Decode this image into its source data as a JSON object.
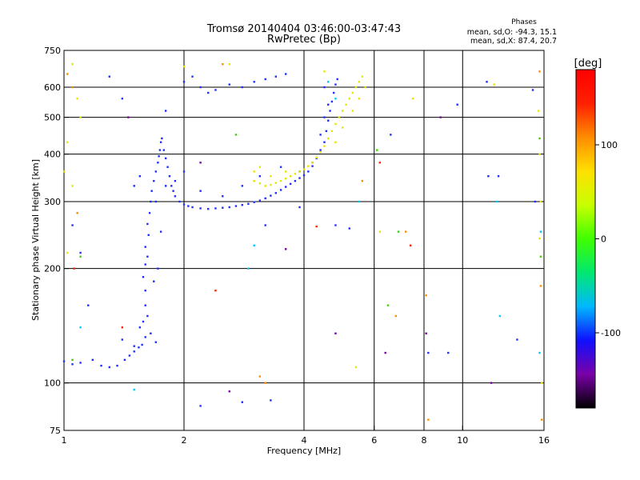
{
  "chart_data": {
    "type": "scatter",
    "title": "Tromsø 20140404 03:46:00-03:47:43",
    "subtitle": "RwPretec (Bp)",
    "xlabel": "Frequency [MHz]",
    "ylabel": "Stationary phase Virtual Height [km]",
    "xscale": "log",
    "yscale": "log",
    "xlim": [
      1,
      16
    ],
    "ylim": [
      75,
      750
    ],
    "xticks": [
      1,
      2,
      4,
      6,
      8,
      10,
      16
    ],
    "yticks": [
      75,
      100,
      200,
      300,
      400,
      500,
      600,
      750
    ],
    "grid": true,
    "info": {
      "heading": "Phases",
      "line1": "mean, sd,O: -94.3, 15.1",
      "line2": "mean, sd,X:  87.4, 20.7"
    },
    "colorbar": {
      "label": "[deg]",
      "range": [
        -180,
        180
      ],
      "ticks": [
        100,
        0,
        -100
      ],
      "colors": [
        "#000000",
        "#7a00a8",
        "#1010ff",
        "#00b8ff",
        "#00e870",
        "#40ff00",
        "#c8ff00",
        "#ffe000",
        "#ff8c00",
        "#ff2000",
        "#ff0000"
      ]
    },
    "series": [
      {
        "color": "#1f2fff",
        "points": [
          [
            1.0,
            114
          ],
          [
            1.05,
            112
          ],
          [
            1.1,
            113
          ],
          [
            1.18,
            115
          ],
          [
            1.24,
            111
          ],
          [
            1.3,
            110
          ],
          [
            1.36,
            111
          ],
          [
            1.42,
            115
          ],
          [
            1.46,
            118
          ],
          [
            1.5,
            121
          ],
          [
            1.54,
            124
          ],
          [
            1.57,
            126
          ],
          [
            1.6,
            132
          ],
          [
            1.58,
            145
          ],
          [
            1.6,
            160
          ],
          [
            1.6,
            175
          ],
          [
            1.58,
            190
          ],
          [
            1.6,
            205
          ],
          [
            1.62,
            215
          ],
          [
            1.6,
            228
          ],
          [
            1.63,
            245
          ],
          [
            1.62,
            262
          ],
          [
            1.64,
            280
          ],
          [
            1.65,
            300
          ],
          [
            1.66,
            320
          ],
          [
            1.68,
            340
          ],
          [
            1.7,
            360
          ],
          [
            1.72,
            380
          ],
          [
            1.73,
            395
          ],
          [
            1.74,
            410
          ],
          [
            1.75,
            430
          ],
          [
            1.76,
            440
          ],
          [
            1.78,
            410
          ],
          [
            1.8,
            390
          ],
          [
            1.82,
            370
          ],
          [
            1.84,
            350
          ],
          [
            1.86,
            330
          ],
          [
            1.88,
            320
          ],
          [
            1.9,
            310
          ],
          [
            1.95,
            300
          ],
          [
            2.0,
            295
          ],
          [
            2.05,
            292
          ],
          [
            2.1,
            290
          ],
          [
            2.2,
            288
          ],
          [
            2.3,
            287
          ],
          [
            2.4,
            288
          ],
          [
            2.5,
            289
          ],
          [
            2.6,
            290
          ],
          [
            2.7,
            292
          ],
          [
            2.8,
            294
          ],
          [
            2.9,
            296
          ],
          [
            3.0,
            299
          ],
          [
            3.1,
            302
          ],
          [
            3.2,
            306
          ],
          [
            3.3,
            311
          ],
          [
            3.4,
            316
          ],
          [
            3.5,
            322
          ],
          [
            3.6,
            328
          ],
          [
            3.7,
            334
          ],
          [
            3.8,
            340
          ],
          [
            3.9,
            346
          ],
          [
            4.0,
            352
          ],
          [
            4.1,
            360
          ],
          [
            4.2,
            372
          ],
          [
            4.3,
            390
          ],
          [
            4.4,
            410
          ],
          [
            4.5,
            430
          ],
          [
            4.55,
            460
          ],
          [
            4.6,
            490
          ],
          [
            4.65,
            520
          ],
          [
            4.7,
            550
          ],
          [
            4.75,
            580
          ],
          [
            4.8,
            610
          ],
          [
            4.85,
            630
          ],
          [
            2.0,
            620
          ],
          [
            2.1,
            640
          ],
          [
            2.2,
            600
          ],
          [
            2.3,
            580
          ],
          [
            2.4,
            590
          ],
          [
            2.6,
            610
          ],
          [
            2.8,
            600
          ],
          [
            3.0,
            620
          ],
          [
            3.2,
            630
          ],
          [
            3.4,
            640
          ],
          [
            3.6,
            650
          ],
          [
            1.5,
            330
          ],
          [
            1.55,
            350
          ],
          [
            1.7,
            300
          ],
          [
            1.75,
            250
          ],
          [
            1.8,
            330
          ],
          [
            1.9,
            340
          ],
          [
            2.0,
            360
          ],
          [
            2.2,
            320
          ],
          [
            2.5,
            310
          ],
          [
            2.8,
            330
          ],
          [
            3.1,
            350
          ],
          [
            3.5,
            370
          ],
          [
            3.9,
            360
          ],
          [
            4.2,
            380
          ],
          [
            4.4,
            450
          ],
          [
            4.5,
            500
          ],
          [
            4.6,
            540
          ],
          [
            4.5,
            600
          ],
          [
            1.4,
            130
          ],
          [
            1.5,
            125
          ],
          [
            1.55,
            140
          ],
          [
            1.65,
            135
          ],
          [
            1.7,
            128
          ],
          [
            1.62,
            150
          ],
          [
            1.68,
            185
          ],
          [
            1.72,
            200
          ],
          [
            1.3,
            640
          ],
          [
            1.4,
            560
          ],
          [
            1.8,
            520
          ],
          [
            2.2,
            87
          ],
          [
            2.8,
            89
          ],
          [
            3.2,
            260
          ],
          [
            3.3,
            90
          ],
          [
            3.9,
            290
          ],
          [
            4.8,
            260
          ],
          [
            5.2,
            255
          ],
          [
            6.6,
            450
          ],
          [
            8.2,
            120
          ],
          [
            9.2,
            120
          ],
          [
            9.7,
            540
          ],
          [
            11.5,
            620
          ],
          [
            11.6,
            350
          ],
          [
            12.3,
            350
          ],
          [
            13.7,
            130
          ],
          [
            15.0,
            590
          ],
          [
            15.2,
            300
          ],
          [
            1.05,
            260
          ],
          [
            1.1,
            220
          ],
          [
            1.15,
            160
          ]
        ]
      },
      {
        "color": "#e6e600",
        "points": [
          [
            3.0,
            340
          ],
          [
            3.1,
            335
          ],
          [
            3.2,
            330
          ],
          [
            3.3,
            332
          ],
          [
            3.4,
            336
          ],
          [
            3.5,
            340
          ],
          [
            3.6,
            345
          ],
          [
            3.7,
            350
          ],
          [
            3.8,
            355
          ],
          [
            3.9,
            360
          ],
          [
            4.0,
            365
          ],
          [
            4.1,
            372
          ],
          [
            4.2,
            380
          ],
          [
            4.3,
            392
          ],
          [
            4.4,
            405
          ],
          [
            4.5,
            420
          ],
          [
            4.6,
            440
          ],
          [
            4.7,
            460
          ],
          [
            4.8,
            480
          ],
          [
            4.9,
            500
          ],
          [
            5.0,
            520
          ],
          [
            5.1,
            540
          ],
          [
            5.2,
            560
          ],
          [
            5.3,
            580
          ],
          [
            5.4,
            600
          ],
          [
            5.5,
            620
          ],
          [
            5.6,
            640
          ],
          [
            3.0,
            360
          ],
          [
            3.1,
            370
          ],
          [
            3.3,
            350
          ],
          [
            3.6,
            360
          ],
          [
            4.8,
            430
          ],
          [
            5.0,
            470
          ],
          [
            5.3,
            520
          ],
          [
            5.5,
            560
          ],
          [
            5.7,
            600
          ],
          [
            1.05,
            690
          ],
          [
            1.08,
            560
          ],
          [
            1.1,
            500
          ],
          [
            1.02,
            430
          ],
          [
            1.05,
            330
          ],
          [
            2.0,
            680
          ],
          [
            2.6,
            690
          ],
          [
            4.5,
            660
          ],
          [
            5.4,
            110
          ],
          [
            6.2,
            250
          ],
          [
            7.5,
            560
          ],
          [
            12.0,
            610
          ],
          [
            15.5,
            520
          ],
          [
            15.6,
            400
          ],
          [
            15.7,
            300
          ],
          [
            15.6,
            240
          ],
          [
            15.8,
            100
          ],
          [
            1.02,
            220
          ],
          [
            1.0,
            360
          ]
        ]
      },
      {
        "color": "#ff8c00",
        "points": [
          [
            1.02,
            650
          ],
          [
            1.05,
            600
          ],
          [
            2.5,
            690
          ],
          [
            3.1,
            104
          ],
          [
            3.2,
            100
          ],
          [
            5.6,
            340
          ],
          [
            6.8,
            150
          ],
          [
            7.2,
            250
          ],
          [
            8.1,
            170
          ],
          [
            8.2,
            80
          ],
          [
            15.6,
            660
          ],
          [
            15.8,
            80
          ],
          [
            15.7,
            180
          ],
          [
            1.08,
            280
          ]
        ]
      },
      {
        "color": "#00c8ff",
        "points": [
          [
            4.6,
            620
          ],
          [
            4.8,
            560
          ],
          [
            1.5,
            96
          ],
          [
            2.9,
            200
          ],
          [
            3.0,
            230
          ],
          [
            5.5,
            300
          ],
          [
            12.2,
            300
          ],
          [
            12.4,
            150
          ],
          [
            15.7,
            250
          ],
          [
            15.6,
            120
          ],
          [
            1.1,
            140
          ]
        ]
      },
      {
        "color": "#40d000",
        "points": [
          [
            2.7,
            450
          ],
          [
            6.1,
            410
          ],
          [
            6.5,
            160
          ],
          [
            1.1,
            215
          ],
          [
            15.6,
            440
          ],
          [
            15.7,
            215
          ],
          [
            1.05,
            115
          ],
          [
            6.9,
            250
          ]
        ]
      },
      {
        "color": "#ff2000",
        "points": [
          [
            4.3,
            258
          ],
          [
            2.4,
            175
          ],
          [
            1.06,
            200
          ],
          [
            1.4,
            140
          ],
          [
            7.4,
            230
          ],
          [
            6.2,
            380
          ]
        ]
      },
      {
        "color": "#7a00a8",
        "points": [
          [
            1.45,
            500
          ],
          [
            2.2,
            380
          ],
          [
            3.6,
            225
          ],
          [
            4.8,
            135
          ],
          [
            8.1,
            135
          ],
          [
            8.8,
            500
          ],
          [
            11.8,
            100
          ],
          [
            2.6,
            95
          ],
          [
            6.4,
            120
          ]
        ]
      }
    ]
  }
}
